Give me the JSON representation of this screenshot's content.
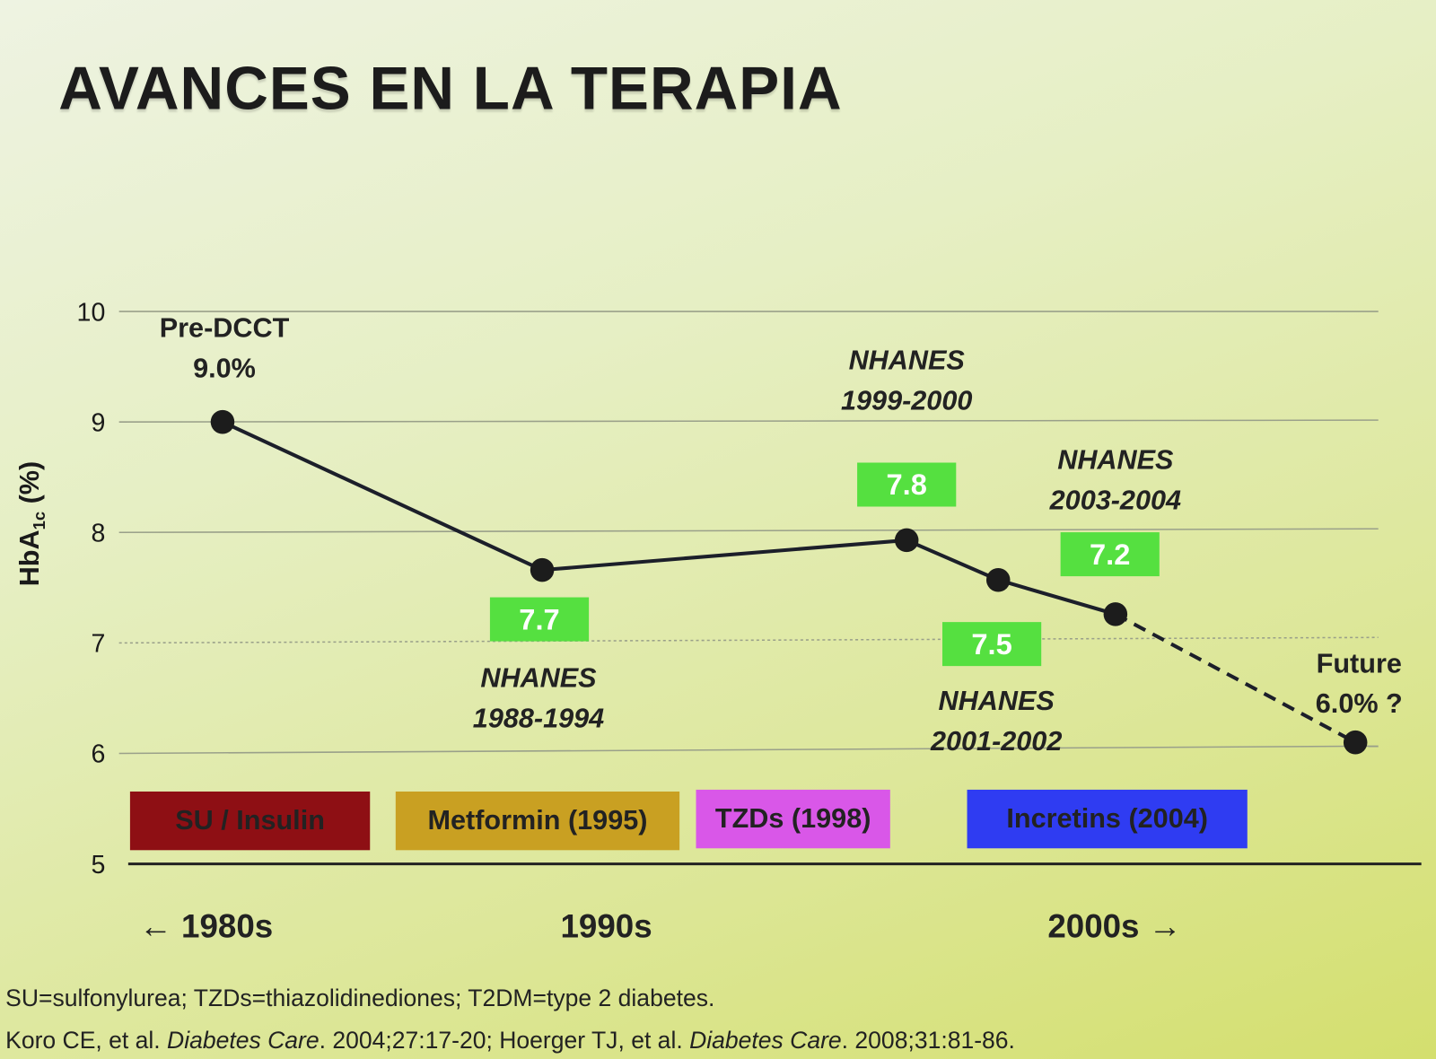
{
  "title": "AVANCES EN LA TERAPIA",
  "chart_data": {
    "type": "line",
    "title": "",
    "ylabel_main": "HbA",
    "ylabel_sub": "1c",
    "ylabel_unit": " (%)",
    "ylim": [
      5,
      10
    ],
    "yticks": [
      "10",
      "9",
      "8",
      "7",
      "6",
      "5"
    ],
    "grid": true,
    "points": [
      {
        "label": [
          "Pre-DCCT",
          "9.0%"
        ],
        "value": 9.0,
        "box": ""
      },
      {
        "label": [
          "NHANES",
          "1988-1994"
        ],
        "value": 7.7,
        "box": "7.7"
      },
      {
        "label": [
          "NHANES",
          "1999-2000"
        ],
        "value": 7.8,
        "box": "7.8"
      },
      {
        "label": [
          "NHANES",
          "2001-2002"
        ],
        "value": 7.5,
        "box": "7.5"
      },
      {
        "label": [
          "NHANES",
          "2003-2004"
        ],
        "value": 7.2,
        "box": "7.2"
      },
      {
        "label": [
          "Future",
          "6.0% ?"
        ],
        "value": 6.0,
        "box": "",
        "projected": true
      }
    ],
    "therapies": [
      {
        "label": "SU / Insulin",
        "color": "#8e0f14"
      },
      {
        "label": "Metformin (1995)",
        "color": "#c9a022"
      },
      {
        "label": "TZDs (1998)",
        "color": "#d957e8"
      },
      {
        "label": "Incretins (2004)",
        "color": "#2f3cf2"
      }
    ],
    "eras": [
      "← 1980s",
      "1990s",
      "2000s →"
    ],
    "box_color": "#55e040"
  },
  "footnotes": [
    "SU=sulfonylurea; TZDs=thiazolidinediones; T2DM=type 2 diabetes.",
    {
      "a": "Koro CE, et al. ",
      "b": "Diabetes Care",
      "c": ". 2004;27:17-20; Hoerger TJ, et al. ",
      "d": "Diabetes Care",
      "e": ". 2008;31:81-86."
    }
  ]
}
